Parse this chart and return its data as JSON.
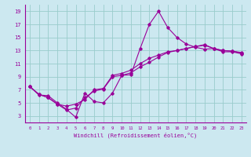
{
  "xlabel": "Windchill (Refroidissement éolien,°C)",
  "bg_color": "#cce8f0",
  "line_color": "#990099",
  "grid_color": "#99cccc",
  "xlim": [
    -0.5,
    23.5
  ],
  "ylim": [
    2,
    20
  ],
  "xticks": [
    0,
    1,
    2,
    3,
    4,
    5,
    6,
    7,
    8,
    9,
    10,
    11,
    12,
    13,
    14,
    15,
    16,
    17,
    18,
    19,
    20,
    21,
    22,
    23
  ],
  "yticks": [
    3,
    5,
    7,
    9,
    11,
    13,
    15,
    17,
    19
  ],
  "series1_x": [
    0,
    1,
    2,
    3,
    4,
    5,
    6,
    7,
    8,
    9,
    10,
    11,
    12,
    13,
    14,
    15,
    16,
    17,
    18,
    19,
    20,
    21,
    22,
    23
  ],
  "series1_y": [
    7.5,
    6.2,
    6.1,
    5.0,
    4.0,
    2.8,
    6.5,
    5.2,
    5.0,
    6.5,
    9.2,
    9.3,
    13.3,
    17.0,
    19.0,
    16.5,
    15.0,
    14.0,
    13.5,
    13.2,
    13.3,
    12.8,
    12.8,
    12.5
  ],
  "series2_x": [
    0,
    1,
    2,
    3,
    4,
    5,
    6,
    7,
    8,
    9,
    10,
    11,
    12,
    13,
    14,
    15,
    16,
    17,
    18,
    19,
    20,
    21,
    22,
    23
  ],
  "series2_y": [
    7.5,
    6.3,
    5.8,
    4.8,
    4.5,
    4.8,
    5.5,
    7.0,
    7.2,
    9.2,
    9.5,
    10.0,
    11.0,
    11.8,
    12.3,
    12.8,
    13.0,
    13.3,
    13.6,
    13.8,
    13.3,
    13.0,
    12.9,
    12.6
  ],
  "series3_x": [
    0,
    1,
    2,
    3,
    4,
    5,
    6,
    7,
    8,
    9,
    10,
    11,
    12,
    13,
    14,
    15,
    16,
    17,
    18,
    19,
    20,
    21,
    22,
    23
  ],
  "series3_y": [
    7.5,
    6.3,
    5.8,
    4.8,
    3.9,
    4.2,
    5.8,
    6.8,
    7.1,
    9.0,
    9.2,
    9.6,
    10.5,
    11.2,
    12.0,
    12.7,
    13.0,
    13.3,
    13.6,
    13.9,
    13.3,
    13.0,
    12.9,
    12.7
  ]
}
